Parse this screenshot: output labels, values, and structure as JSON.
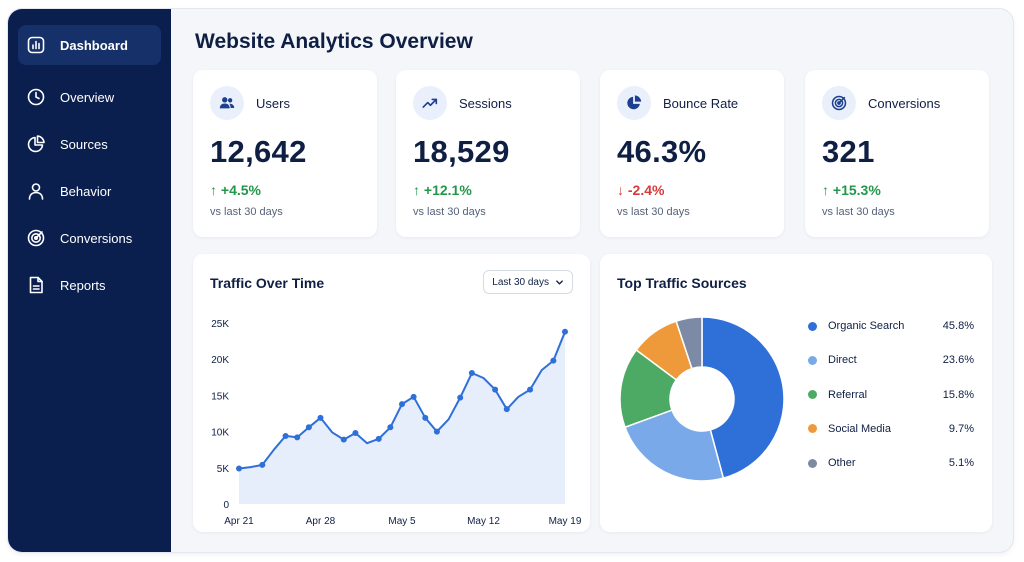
{
  "colors": {
    "sidebar_bg": "#0b1f4f",
    "accent": "#2f6fd8",
    "positive": "#23974a",
    "negative": "#d83a3a"
  },
  "sidebar": {
    "items": [
      {
        "label": "Dashboard",
        "icon": "bar-chart-icon",
        "active": true
      },
      {
        "label": "Overview",
        "icon": "clock-icon",
        "active": false
      },
      {
        "label": "Sources",
        "icon": "pie-chart-icon",
        "active": false
      },
      {
        "label": "Behavior",
        "icon": "user-icon",
        "active": false
      },
      {
        "label": "Conversions",
        "icon": "target-icon",
        "active": false
      },
      {
        "label": "Reports",
        "icon": "document-icon",
        "active": false
      }
    ]
  },
  "page": {
    "title": "Website Analytics Overview"
  },
  "stats": [
    {
      "label": "Users",
      "icon": "users-icon",
      "value": "12,642",
      "arrow": "↑",
      "change": "+4.5%",
      "direction": "up",
      "sub": "vs last 30 days"
    },
    {
      "label": "Sessions",
      "icon": "trending-up-icon",
      "value": "18,529",
      "arrow": "↑",
      "change": "+12.1%",
      "direction": "up",
      "sub": "vs last 30 days"
    },
    {
      "label": "Bounce Rate",
      "icon": "pie-slice-icon",
      "value": "46.3%",
      "arrow": "↓",
      "change": "-2.4%",
      "direction": "down",
      "sub": "vs last 30 days"
    },
    {
      "label": "Conversions",
      "icon": "target-icon",
      "value": "321",
      "arrow": "↑",
      "change": "+15.3%",
      "direction": "up",
      "sub": "vs last 30 days"
    }
  ],
  "traffic": {
    "title": "Traffic Over Time",
    "range_label": "Last 30 days"
  },
  "sources": {
    "title": "Top Traffic Sources"
  },
  "chart_data": [
    {
      "type": "area",
      "title": "Traffic Over Time",
      "xlabel": "",
      "ylabel": "",
      "x_ticks": [
        "Apr 21",
        "Apr 28",
        "May 5",
        "May 12",
        "May 19"
      ],
      "y_ticks": [
        "0",
        "5K",
        "10K",
        "15K",
        "20K",
        "25K"
      ],
      "ylim": [
        0,
        25000
      ],
      "x": [
        "Apr 21",
        "Apr 22",
        "Apr 23",
        "Apr 24",
        "Apr 25",
        "Apr 26",
        "Apr 27",
        "Apr 28",
        "Apr 29",
        "Apr 30",
        "May 1",
        "May 2",
        "May 3",
        "May 4",
        "May 5",
        "May 6",
        "May 7",
        "May 8",
        "May 9",
        "May 10",
        "May 11",
        "May 12",
        "May 13",
        "May 14",
        "May 15",
        "May 16",
        "May 17",
        "May 18",
        "May 19"
      ],
      "values": [
        4900,
        5100,
        5400,
        7500,
        9400,
        9200,
        10600,
        11900,
        9900,
        8900,
        9800,
        8400,
        9000,
        10600,
        13800,
        14800,
        11900,
        10000,
        11700,
        14700,
        18100,
        17400,
        15800,
        13100,
        14800,
        15800,
        18500,
        19800,
        23800
      ],
      "series": [
        {
          "x": [
            "Apr 21",
            "Apr 22",
            "Apr 23",
            "Apr 24",
            "Apr 25",
            "Apr 26",
            "Apr 27",
            "Apr 28",
            "Apr 29",
            "Apr 30",
            "May 1",
            "May 2",
            "May 3",
            "May 4",
            "May 5",
            "May 6",
            "May 7",
            "May 8",
            "May 9",
            "May 10",
            "May 11",
            "May 12",
            "May 13",
            "May 14",
            "May 15",
            "May 16",
            "May 17",
            "May 18",
            "May 19"
          ],
          "y": [
            4900,
            null,
            5400,
            null,
            9400,
            9200,
            10600,
            11900,
            null,
            8900,
            9800,
            null,
            9000,
            10600,
            13800,
            14800,
            11900,
            10000,
            null,
            14700,
            18100,
            null,
            15800,
            13100,
            null,
            15800,
            null,
            19800,
            23800
          ]
        }
      ],
      "grid": false,
      "legend": "none",
      "color": "#2f6fd8"
    },
    {
      "type": "pie",
      "title": "Top Traffic Sources",
      "donut": true,
      "categories": [
        "Organic Search",
        "Direct",
        "Referral",
        "Social Media",
        "Other"
      ],
      "values": [
        45.8,
        23.6,
        15.8,
        9.7,
        5.1
      ],
      "labels": [
        "45.8%",
        "23.6%",
        "15.8%",
        "9.7%",
        "5.1%"
      ],
      "colors": [
        "#2f6fd8",
        "#7aa9ea",
        "#4caa64",
        "#ef9a3a",
        "#7d8aa6"
      ],
      "legend": "right"
    }
  ]
}
